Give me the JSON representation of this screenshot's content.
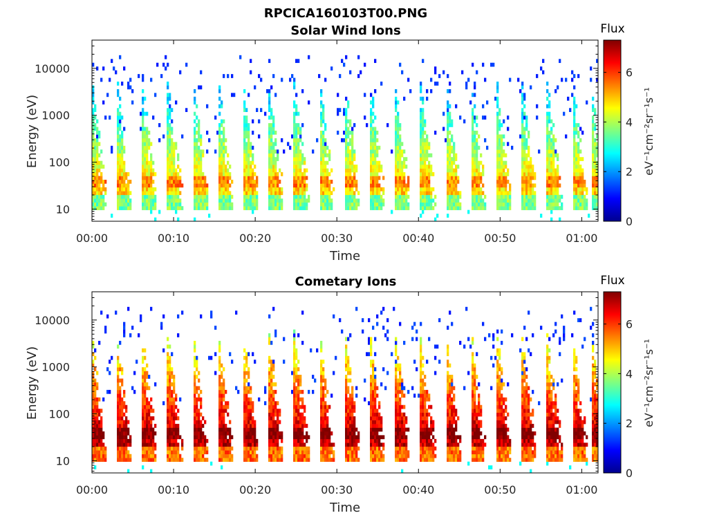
{
  "figure": {
    "title": "RPCICA160103T00.PNG"
  },
  "panels": [
    {
      "title": "Solar Wind Ions",
      "xlabel": "Time",
      "ylabel": "Energy (eV)",
      "colorbar_title": "Flux",
      "colorbar_label": "eV⁻¹cm⁻²sr⁻¹s⁻¹"
    },
    {
      "title": "Cometary Ions",
      "xlabel": "Time",
      "ylabel": "Energy (eV)",
      "colorbar_title": "Flux",
      "colorbar_label": "eV⁻¹cm⁻²sr⁻¹s⁻¹"
    }
  ],
  "chart_data": [
    {
      "type": "heatmap",
      "title": "Solar Wind Ions",
      "xlabel": "Time",
      "ylabel": "Energy (eV)",
      "x_ticks": [
        "00:00",
        "00:10",
        "00:20",
        "00:30",
        "00:40",
        "00:50",
        "01:00"
      ],
      "x_range_minutes": [
        0,
        62
      ],
      "y_scale": "log",
      "y_ticks": [
        10,
        100,
        1000,
        10000
      ],
      "y_range": [
        5.5,
        40000
      ],
      "colorbar": {
        "title": "Flux",
        "label": "eV⁻¹cm⁻²sr⁻¹s⁻¹",
        "ticks": [
          0,
          2,
          4,
          6
        ],
        "range": [
          0,
          7.3
        ],
        "colormap": "jet"
      },
      "sweep_times_minutes": [
        0.3,
        3.4,
        6.5,
        9.6,
        12.7,
        15.8,
        18.9,
        22.0,
        25.1,
        28.2,
        31.3,
        34.4,
        37.5,
        40.6,
        43.7,
        46.8,
        49.9,
        53.0,
        56.1,
        59.2,
        61.5
      ],
      "peak_energy_ev": 40,
      "peak_flux": 4.8,
      "background_max_energy_ev": 20000
    },
    {
      "type": "heatmap",
      "title": "Cometary Ions",
      "xlabel": "Time",
      "ylabel": "Energy (eV)",
      "x_ticks": [
        "00:00",
        "00:10",
        "00:20",
        "00:30",
        "00:40",
        "00:50",
        "01:00"
      ],
      "x_range_minutes": [
        0,
        62
      ],
      "y_scale": "log",
      "y_ticks": [
        10,
        100,
        1000,
        10000
      ],
      "y_range": [
        5.5,
        40000
      ],
      "colorbar": {
        "title": "Flux",
        "label": "eV⁻¹cm⁻²sr⁻¹s⁻¹",
        "ticks": [
          0,
          2,
          4,
          6
        ],
        "range": [
          0,
          7.3
        ],
        "colormap": "jet"
      },
      "sweep_times_minutes": [
        0.3,
        3.4,
        6.5,
        9.6,
        12.7,
        15.8,
        18.9,
        22.0,
        25.1,
        28.2,
        31.3,
        34.4,
        37.5,
        40.6,
        43.7,
        46.8,
        49.9,
        53.0,
        56.1,
        59.2,
        61.5
      ],
      "peak_energy_ev": 40,
      "peak_flux": 6.8,
      "background_max_energy_ev": 20000
    }
  ]
}
